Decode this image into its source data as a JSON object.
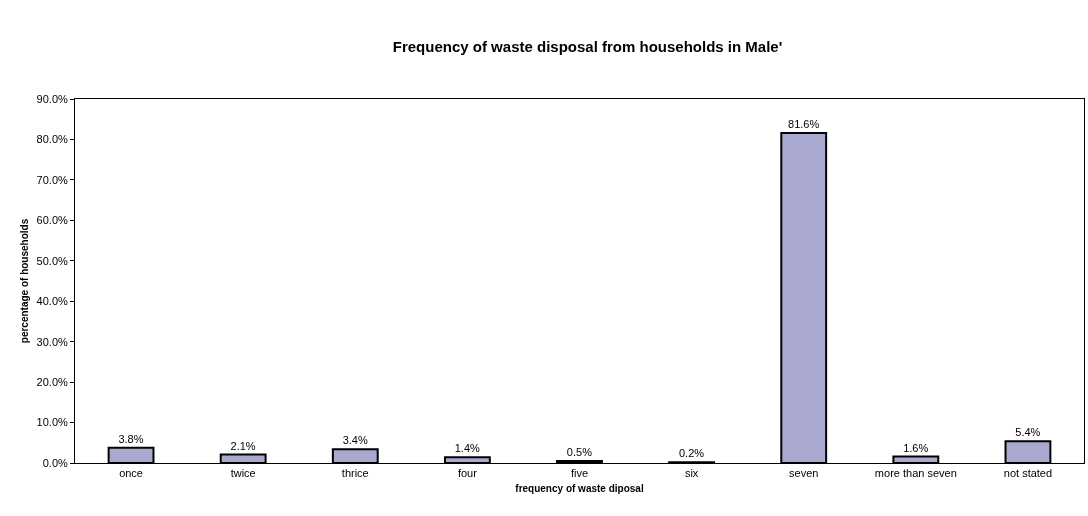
{
  "chart_data": {
    "type": "bar",
    "title": "Frequency of waste disposal from households in Male'",
    "xlabel": "frequency of waste diposal",
    "ylabel": "percentage of households",
    "categories": [
      "once",
      "twice",
      "thrice",
      "four",
      "five",
      "six",
      "seven",
      "more than seven",
      "not stated"
    ],
    "values": [
      3.8,
      2.1,
      3.4,
      1.4,
      0.5,
      0.2,
      81.6,
      1.6,
      5.4
    ],
    "value_labels": [
      "3.8%",
      "2.1%",
      "3.4%",
      "1.4%",
      "0.5%",
      "0.2%",
      "81.6%",
      "1.6%",
      "5.4%"
    ],
    "color": "#aaaad0",
    "ylim": [
      0,
      90
    ],
    "yticks": [
      {
        "value": 0,
        "label": "0.0%"
      },
      {
        "value": 10,
        "label": "10.0%"
      },
      {
        "value": 20,
        "label": "20.0%"
      },
      {
        "value": 30,
        "label": "30.0%"
      },
      {
        "value": 40,
        "label": "40.0%"
      },
      {
        "value": 50,
        "label": "50.0%"
      },
      {
        "value": 60,
        "label": "60.0%"
      },
      {
        "value": 70,
        "label": "70.0%"
      },
      {
        "value": 80,
        "label": "80.0%"
      },
      {
        "value": 90,
        "label": "90.0%"
      }
    ],
    "grid": false
  }
}
